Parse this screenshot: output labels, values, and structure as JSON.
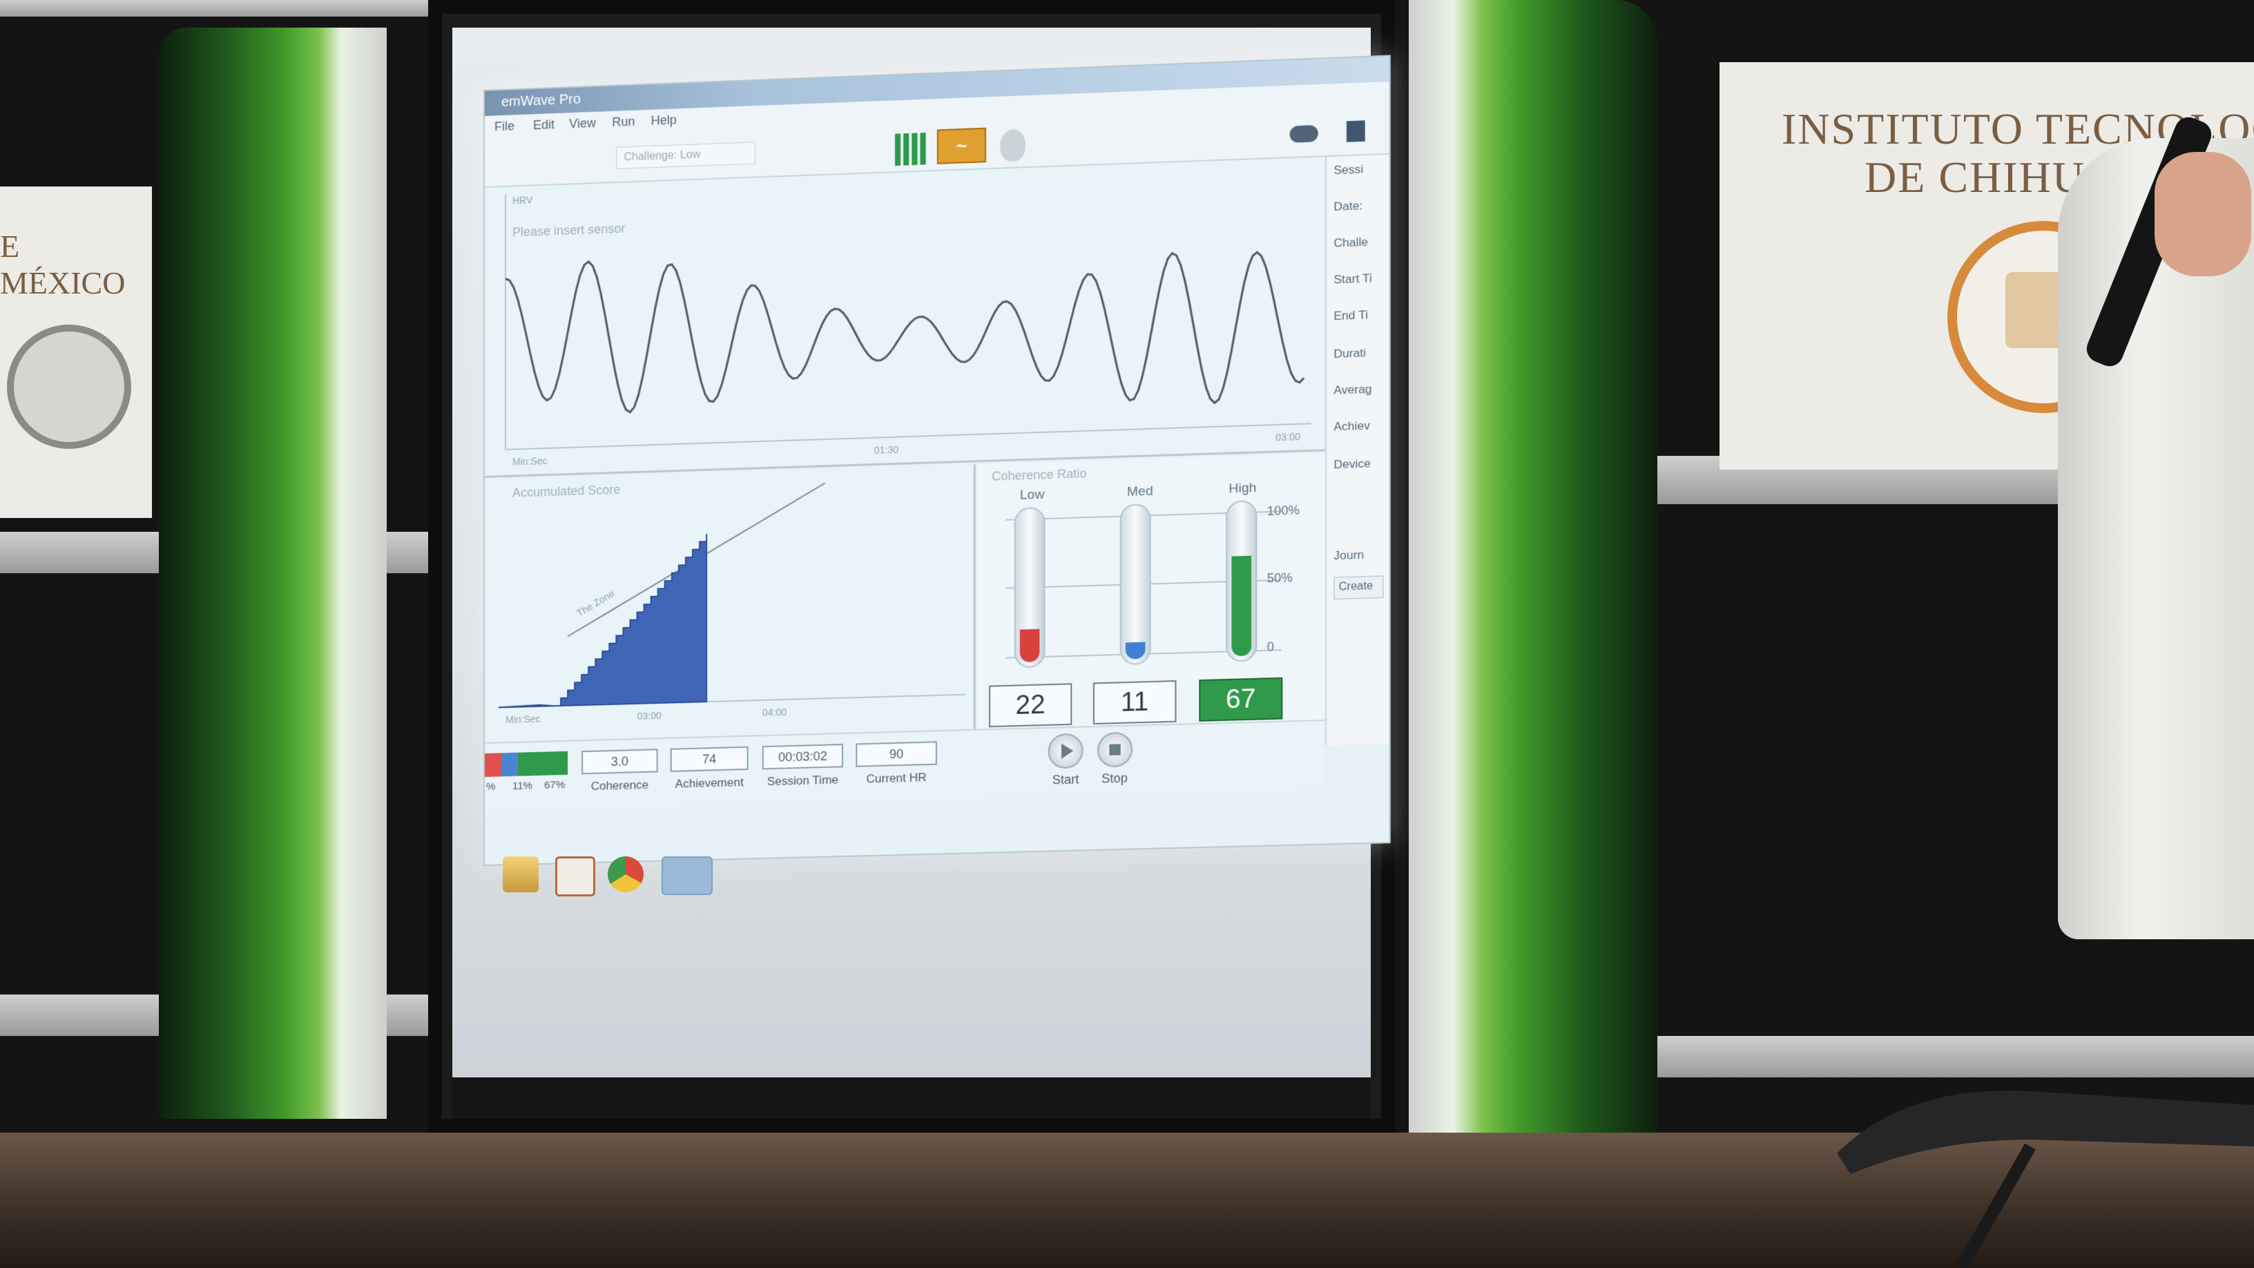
{
  "app": {
    "title": "emWave Pro",
    "menu": [
      "File",
      "Edit",
      "View",
      "Run",
      "Help"
    ],
    "challenge": "Challenge: Low",
    "hrv_chart": {
      "label": "HRV",
      "message": "Please insert sensor",
      "x_ticks": [
        "Min:Sec",
        "01:30",
        "03:00"
      ]
    },
    "score_chart": {
      "title": "Accumulated Score",
      "zone_label": "The Zone",
      "x_ticks": [
        "Min:Sec",
        "03:00",
        "04:00"
      ]
    },
    "ratio": {
      "title": "Coherence Ratio",
      "scale": [
        "100%",
        "50%",
        "0"
      ],
      "bars": [
        {
          "label": "Low",
          "value": "22",
          "fraction": 0.22,
          "color": "#d9423c"
        },
        {
          "label": "Med",
          "value": "11",
          "fraction": 0.11,
          "color": "#3f7fd4"
        },
        {
          "label": "High",
          "value": "67",
          "fraction": 0.67,
          "color": "#2f9a4a"
        }
      ]
    },
    "side_panel": [
      "Sessi",
      "Date:",
      "Challe",
      "Start Ti",
      "End Ti",
      "Durati",
      "Averag",
      "Achiev",
      "Device",
      "Journ"
    ],
    "create_label": "Create",
    "status": {
      "percents": [
        "%",
        "11%",
        "67%"
      ],
      "coherence": "3.0",
      "coherence_label": "Coherence",
      "achievement": "74",
      "achievement_label": "Achievement",
      "session_time": "00:03:02",
      "session_time_label": "Session Time",
      "current_hr": "90",
      "current_hr_label": "Current HR",
      "start_label": "Start",
      "stop_label": "Stop"
    }
  },
  "banners": {
    "left": "E MÉXICO",
    "right_line1": "INSTITUTO TECNOLOG",
    "right_line2": "DE CHIHUAHUA"
  },
  "colors": {
    "green_accent": "#2f9a4a",
    "stage_green": "#3f9a2a"
  }
}
